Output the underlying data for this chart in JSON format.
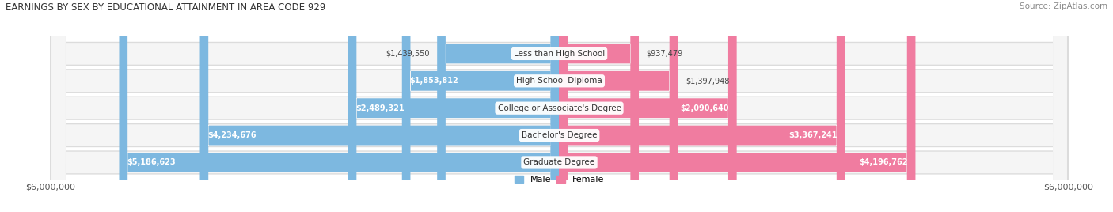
{
  "title": "EARNINGS BY SEX BY EDUCATIONAL ATTAINMENT IN AREA CODE 929",
  "source": "Source: ZipAtlas.com",
  "categories": [
    "Less than High School",
    "High School Diploma",
    "College or Associate's Degree",
    "Bachelor's Degree",
    "Graduate Degree"
  ],
  "male_values": [
    1439550,
    1853812,
    2489321,
    4234676,
    5186623
  ],
  "female_values": [
    937479,
    1397948,
    2090640,
    3367241,
    4196762
  ],
  "male_color": "#7db8e0",
  "female_color": "#f07ca0",
  "male_label": "Male",
  "female_label": "Female",
  "row_bg_color": "#e8e8e8",
  "row_inner_color": "#f8f8f8",
  "axis_max": 6000000,
  "axis_label": "$6,000,000",
  "label_fontsize": 8.0,
  "title_fontsize": 8.5,
  "source_fontsize": 7.5,
  "value_fontsize": 7.0,
  "category_fontsize": 7.5,
  "figsize": [
    14.06,
    2.68
  ],
  "dpi": 100
}
